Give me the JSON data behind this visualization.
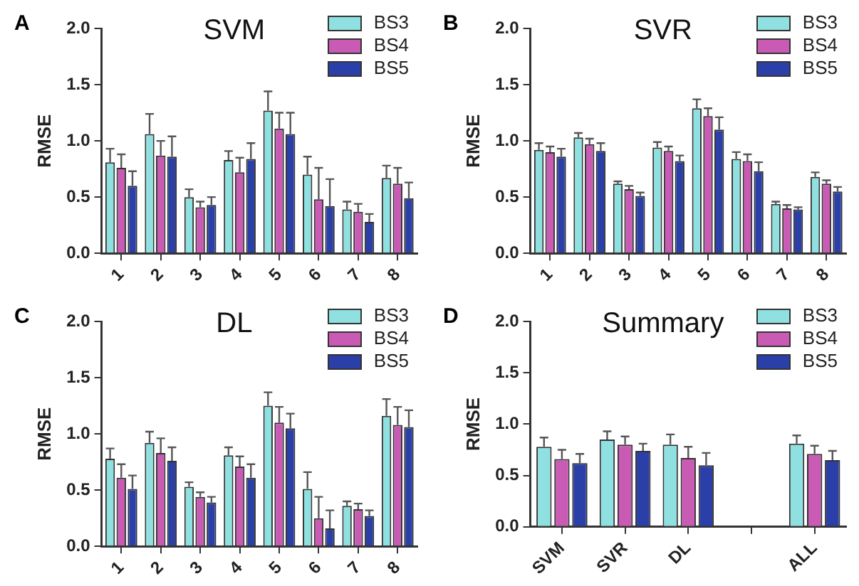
{
  "chart_data": [
    {
      "type": "bar",
      "title": "SVM",
      "ylabel": "RMSE",
      "annotations": [
        "A"
      ],
      "categories": [
        "1",
        "2",
        "3",
        "4",
        "5",
        "6",
        "7",
        "8"
      ],
      "ylim": [
        0,
        2
      ],
      "yticks": [
        {
          "value": 0,
          "label": "0.0"
        },
        {
          "value": 0.5,
          "label": "0.5"
        },
        {
          "value": 1,
          "label": "1.0"
        },
        {
          "value": 1.5,
          "label": "1.5"
        },
        {
          "value": 2,
          "label": "2.0"
        }
      ],
      "legend": "top right",
      "grid": false,
      "series": [
        {
          "name": "BS3",
          "color": "#8fe0e0",
          "values": [
            0.81,
            1.06,
            0.5,
            0.83,
            1.27,
            0.7,
            0.39,
            0.67
          ],
          "errors": [
            [
              0.81,
              0.93
            ],
            [
              1.06,
              1.24
            ],
            [
              0.5,
              0.57
            ],
            [
              0.83,
              0.91
            ],
            [
              1.27,
              1.44
            ],
            [
              0.7,
              0.86
            ],
            [
              0.39,
              0.46
            ],
            [
              0.67,
              0.78
            ]
          ]
        },
        {
          "name": "BS4",
          "color": "#c95bb5",
          "values": [
            0.76,
            0.87,
            0.41,
            0.72,
            1.11,
            0.48,
            0.37,
            0.62
          ],
          "errors": [
            [
              0.76,
              0.88
            ],
            [
              0.87,
              1.0
            ],
            [
              0.41,
              0.46
            ],
            [
              0.72,
              0.85
            ],
            [
              1.11,
              1.25
            ],
            [
              0.48,
              0.76
            ],
            [
              0.37,
              0.44
            ],
            [
              0.62,
              0.76
            ]
          ]
        },
        {
          "name": "BS5",
          "color": "#2b3fa8",
          "values": [
            0.6,
            0.86,
            0.43,
            0.84,
            1.06,
            0.42,
            0.28,
            0.49
          ],
          "errors": [
            [
              0.6,
              0.73
            ],
            [
              0.86,
              1.04
            ],
            [
              0.43,
              0.5
            ],
            [
              0.84,
              0.98
            ],
            [
              1.06,
              1.25
            ],
            [
              0.42,
              0.66
            ],
            [
              0.28,
              0.35
            ],
            [
              0.49,
              0.63
            ]
          ]
        }
      ]
    },
    {
      "type": "bar",
      "title": "SVR",
      "ylabel": "RMSE",
      "annotations": [
        "B"
      ],
      "categories": [
        "1",
        "2",
        "3",
        "4",
        "5",
        "6",
        "7",
        "8"
      ],
      "ylim": [
        0,
        2
      ],
      "yticks": [
        {
          "value": 0,
          "label": "0.0"
        },
        {
          "value": 0.5,
          "label": "0.5"
        },
        {
          "value": 1,
          "label": "1.0"
        },
        {
          "value": 1.5,
          "label": "1.5"
        },
        {
          "value": 2,
          "label": "2.0"
        }
      ],
      "legend": "top right",
      "grid": false,
      "series": [
        {
          "name": "BS3",
          "color": "#8fe0e0",
          "values": [
            0.92,
            1.03,
            0.62,
            0.94,
            1.29,
            0.84,
            0.44,
            0.68
          ],
          "errors": [
            [
              0.92,
              0.98
            ],
            [
              1.03,
              1.07
            ],
            [
              0.62,
              0.64
            ],
            [
              0.94,
              0.99
            ],
            [
              1.29,
              1.37
            ],
            [
              0.84,
              0.9
            ],
            [
              0.44,
              0.46
            ],
            [
              0.68,
              0.72
            ]
          ]
        },
        {
          "name": "BS4",
          "color": "#c95bb5",
          "values": [
            0.9,
            0.97,
            0.57,
            0.91,
            1.22,
            0.82,
            0.4,
            0.62
          ],
          "errors": [
            [
              0.9,
              0.95
            ],
            [
              0.97,
              1.02
            ],
            [
              0.57,
              0.6
            ],
            [
              0.91,
              0.95
            ],
            [
              1.22,
              1.29
            ],
            [
              0.82,
              0.88
            ],
            [
              0.4,
              0.43
            ],
            [
              0.62,
              0.65
            ]
          ]
        },
        {
          "name": "BS5",
          "color": "#2b3fa8",
          "values": [
            0.86,
            0.91,
            0.51,
            0.82,
            1.1,
            0.73,
            0.39,
            0.55
          ],
          "errors": [
            [
              0.86,
              0.93
            ],
            [
              0.91,
              0.98
            ],
            [
              0.51,
              0.54
            ],
            [
              0.82,
              0.87
            ],
            [
              1.1,
              1.21
            ],
            [
              0.73,
              0.81
            ],
            [
              0.39,
              0.41
            ],
            [
              0.55,
              0.59
            ]
          ]
        }
      ]
    },
    {
      "type": "bar",
      "title": "DL",
      "ylabel": "RMSE",
      "annotations": [
        "C"
      ],
      "categories": [
        "1",
        "2",
        "3",
        "4",
        "5",
        "6",
        "7",
        "8"
      ],
      "ylim": [
        0,
        2
      ],
      "yticks": [
        {
          "value": 0,
          "label": "0.0"
        },
        {
          "value": 0.5,
          "label": "0.5"
        },
        {
          "value": 1,
          "label": "1.0"
        },
        {
          "value": 1.5,
          "label": "1.5"
        },
        {
          "value": 2,
          "label": "2.0"
        }
      ],
      "legend": "top right",
      "grid": false,
      "series": [
        {
          "name": "BS3",
          "color": "#8fe0e0",
          "values": [
            0.78,
            0.92,
            0.53,
            0.81,
            1.25,
            0.51,
            0.36,
            1.16
          ],
          "errors": [
            [
              0.78,
              0.87
            ],
            [
              0.92,
              1.02
            ],
            [
              0.53,
              0.57
            ],
            [
              0.81,
              0.88
            ],
            [
              1.25,
              1.37
            ],
            [
              0.51,
              0.66
            ],
            [
              0.36,
              0.4
            ],
            [
              1.16,
              1.31
            ]
          ]
        },
        {
          "name": "BS4",
          "color": "#c95bb5",
          "values": [
            0.61,
            0.83,
            0.44,
            0.71,
            1.1,
            0.25,
            0.33,
            1.08
          ],
          "errors": [
            [
              0.61,
              0.73
            ],
            [
              0.83,
              0.96
            ],
            [
              0.44,
              0.48
            ],
            [
              0.71,
              0.8
            ],
            [
              1.1,
              1.24
            ],
            [
              0.25,
              0.44
            ],
            [
              0.33,
              0.38
            ],
            [
              1.08,
              1.24
            ]
          ]
        },
        {
          "name": "BS5",
          "color": "#2b3fa8",
          "values": [
            0.51,
            0.76,
            0.39,
            0.61,
            1.05,
            0.16,
            0.27,
            1.06
          ],
          "errors": [
            [
              0.51,
              0.63
            ],
            [
              0.76,
              0.88
            ],
            [
              0.39,
              0.44
            ],
            [
              0.61,
              0.73
            ],
            [
              1.05,
              1.18
            ],
            [
              0.16,
              0.32
            ],
            [
              0.27,
              0.32
            ],
            [
              1.06,
              1.21
            ]
          ]
        }
      ]
    },
    {
      "type": "bar",
      "title": "Summary",
      "ylabel": "RMSE",
      "annotations": [
        "D"
      ],
      "categories": [
        "SVM",
        "SVR",
        "DL",
        null,
        "ALL"
      ],
      "ylim": [
        0,
        2
      ],
      "yticks": [
        {
          "value": 0,
          "label": "0.0"
        },
        {
          "value": 0.5,
          "label": "0.5"
        },
        {
          "value": 1,
          "label": "1.0"
        },
        {
          "value": 1.5,
          "label": "1.5"
        },
        {
          "value": 2,
          "label": "2.0"
        }
      ],
      "legend": "top right",
      "grid": false,
      "series": [
        {
          "name": "BS3",
          "color": "#8fe0e0",
          "values": [
            0.78,
            0.85,
            0.8,
            null,
            0.81
          ],
          "errors": [
            [
              0.78,
              0.87
            ],
            [
              0.85,
              0.93
            ],
            [
              0.8,
              0.9
            ],
            null,
            [
              0.81,
              0.89
            ]
          ]
        },
        {
          "name": "BS4",
          "color": "#c95bb5",
          "values": [
            0.66,
            0.8,
            0.67,
            null,
            0.71
          ],
          "errors": [
            [
              0.66,
              0.75
            ],
            [
              0.8,
              0.88
            ],
            [
              0.67,
              0.78
            ],
            null,
            [
              0.71,
              0.79
            ]
          ]
        },
        {
          "name": "BS5",
          "color": "#2b3fa8",
          "values": [
            0.62,
            0.74,
            0.6,
            null,
            0.65
          ],
          "errors": [
            [
              0.62,
              0.71
            ],
            [
              0.74,
              0.81
            ],
            [
              0.6,
              0.72
            ],
            null,
            [
              0.65,
              0.74
            ]
          ]
        }
      ]
    }
  ]
}
